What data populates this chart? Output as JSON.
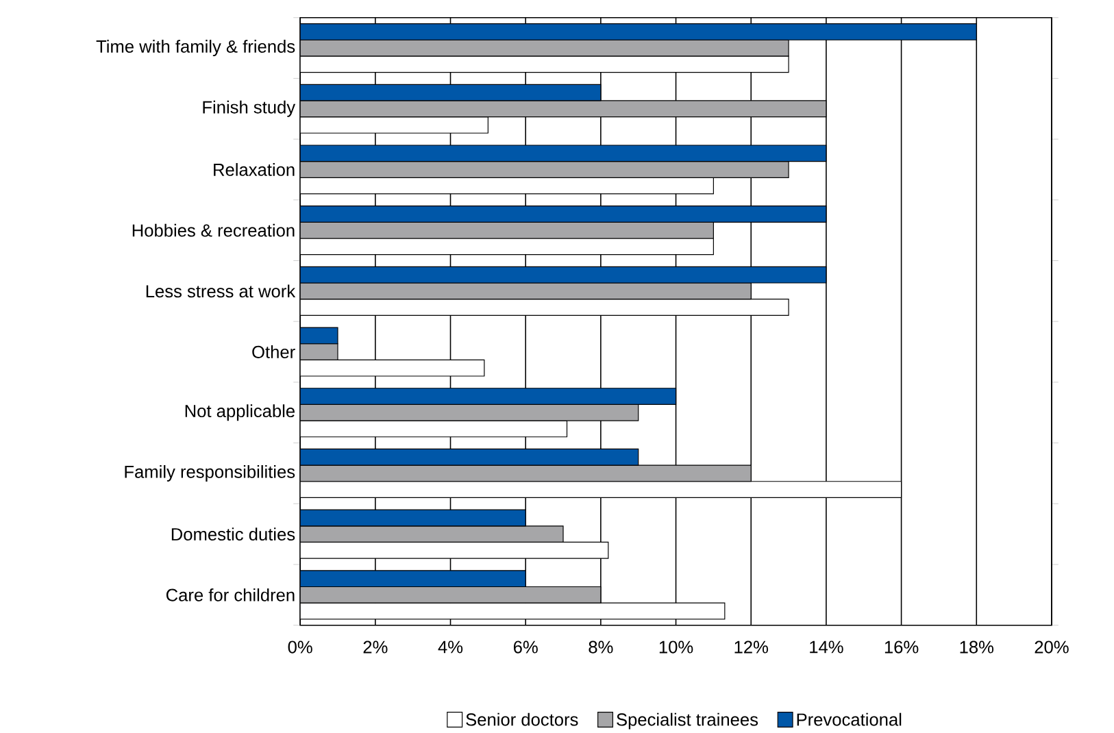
{
  "chart_data": {
    "type": "bar",
    "orientation": "horizontal",
    "categories": [
      "Time with family & friends",
      "Finish study",
      "Relaxation",
      "Hobbies & recreation",
      "Less stress at work",
      "Other",
      "Not applicable",
      "Family responsibilities",
      "Domestic duties",
      "Care for children"
    ],
    "series": [
      {
        "name": "Senior doctors",
        "color": "#ffffff",
        "values": [
          13,
          5,
          11,
          11,
          13,
          4.9,
          7.1,
          16,
          8.2,
          11.3
        ]
      },
      {
        "name": "Specialist trainees",
        "color": "#a6a6a8",
        "values": [
          13,
          14,
          13,
          11,
          12,
          1,
          9,
          12,
          7,
          8
        ]
      },
      {
        "name": "Prevocational",
        "color": "#0057a8",
        "values": [
          18,
          8,
          14,
          14,
          14,
          1,
          10,
          9,
          6,
          6
        ]
      }
    ],
    "xlim": [
      0,
      20
    ],
    "xticks": [
      {
        "value": 0,
        "label": "0%"
      },
      {
        "value": 2,
        "label": "2%"
      },
      {
        "value": 4,
        "label": "4%"
      },
      {
        "value": 6,
        "label": "6%"
      },
      {
        "value": 8,
        "label": "8%"
      },
      {
        "value": 10,
        "label": "10%"
      },
      {
        "value": 12,
        "label": "12%"
      },
      {
        "value": 14,
        "label": "14%"
      },
      {
        "value": 16,
        "label": "16%"
      },
      {
        "value": 18,
        "label": "18%"
      },
      {
        "value": 20,
        "label": "20%"
      }
    ],
    "grid": "x",
    "legend": "bottom"
  }
}
